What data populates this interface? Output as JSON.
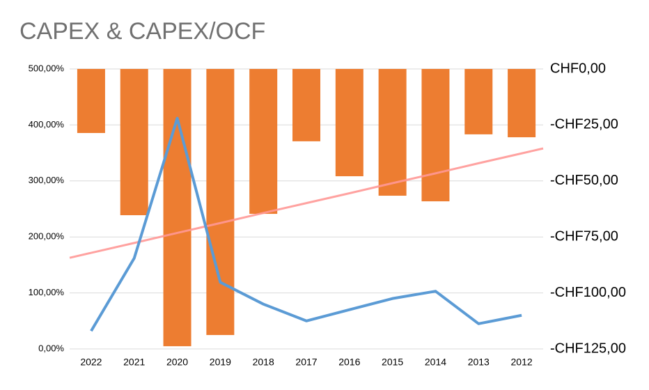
{
  "chart_data": {
    "type": "bar-line",
    "title": "CAPEX & CAPEX/OCF",
    "categories": [
      "2022",
      "2021",
      "2020",
      "2019",
      "2018",
      "2017",
      "2016",
      "2015",
      "2014",
      "2013",
      "2012"
    ],
    "series": [
      {
        "type": "bar",
        "axis": "y2",
        "color": "#ed7d31",
        "values": [
          -28.6,
          -65.3,
          -123.8,
          -118.8,
          -64.7,
          -32.3,
          -47.9,
          -56.6,
          -59.1,
          -29.2,
          -30.5
        ]
      },
      {
        "type": "line",
        "axis": "y",
        "color": "#5b9bd5",
        "values": [
          32,
          162,
          412,
          119,
          80,
          50,
          70,
          90,
          103,
          45,
          60
        ]
      }
    ],
    "trendline": {
      "axis": "y2",
      "color": "#ff9896",
      "values": [
        -82.1,
        -77.7,
        -73.2,
        -68.8,
        -64.3,
        -59.9,
        -55.5,
        -51.0,
        -46.6,
        -42.1,
        -37.7
      ]
    },
    "ylim": [
      0,
      500
    ],
    "yticks": [
      {
        "value": 0,
        "label": "0,00%"
      },
      {
        "value": 100,
        "label": "100,00%"
      },
      {
        "value": 200,
        "label": "200,00%"
      },
      {
        "value": 300,
        "label": "300,00%"
      },
      {
        "value": 400,
        "label": "400,00%"
      },
      {
        "value": 500,
        "label": "500,00%"
      }
    ],
    "y2lim": [
      -125,
      0
    ],
    "y2ticks": [
      {
        "value": -125,
        "label": "-CHF125,00"
      },
      {
        "value": -100,
        "label": "-CHF100,00"
      },
      {
        "value": -75,
        "label": "-CHF75,00"
      },
      {
        "value": -50,
        "label": "-CHF50,00"
      },
      {
        "value": -25,
        "label": "-CHF25,00"
      },
      {
        "value": 0,
        "label": "CHF0,00"
      }
    ],
    "grid": true
  }
}
